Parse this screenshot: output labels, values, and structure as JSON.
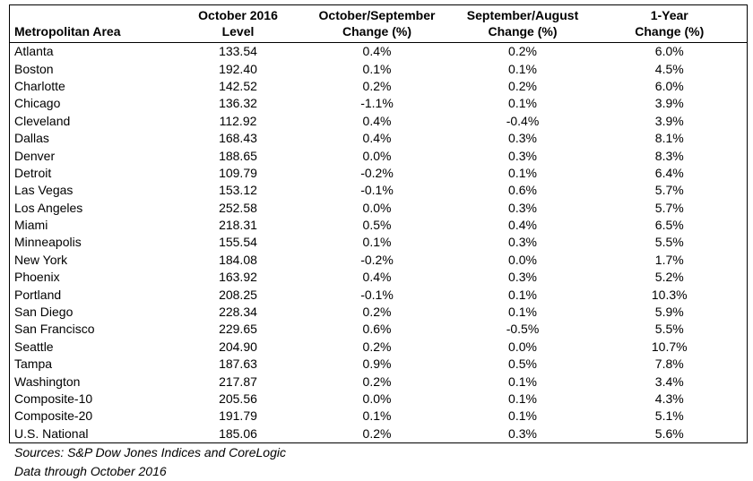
{
  "table": {
    "headers": [
      "Metropolitan Area",
      "October 2016\nLevel",
      "October/September\nChange (%)",
      "September/August\nChange (%)",
      "1-Year\nChange (%)"
    ],
    "rows": [
      [
        "Atlanta",
        "133.54",
        "0.4%",
        "0.2%",
        "6.0%"
      ],
      [
        "Boston",
        "192.40",
        "0.1%",
        "0.1%",
        "4.5%"
      ],
      [
        "Charlotte",
        "142.52",
        "0.2%",
        "0.2%",
        "6.0%"
      ],
      [
        "Chicago",
        "136.32",
        "-1.1%",
        "0.1%",
        "3.9%"
      ],
      [
        "Cleveland",
        "112.92",
        "0.4%",
        "-0.4%",
        "3.9%"
      ],
      [
        "Dallas",
        "168.43",
        "0.4%",
        "0.3%",
        "8.1%"
      ],
      [
        "Denver",
        "188.65",
        "0.0%",
        "0.3%",
        "8.3%"
      ],
      [
        "Detroit",
        "109.79",
        "-0.2%",
        "0.1%",
        "6.4%"
      ],
      [
        "Las Vegas",
        "153.12",
        "-0.1%",
        "0.6%",
        "5.7%"
      ],
      [
        "Los Angeles",
        "252.58",
        "0.0%",
        "0.3%",
        "5.7%"
      ],
      [
        "Miami",
        "218.31",
        "0.5%",
        "0.4%",
        "6.5%"
      ],
      [
        "Minneapolis",
        "155.54",
        "0.1%",
        "0.3%",
        "5.5%"
      ],
      [
        "New York",
        "184.08",
        "-0.2%",
        "0.0%",
        "1.7%"
      ],
      [
        "Phoenix",
        "163.92",
        "0.4%",
        "0.3%",
        "5.2%"
      ],
      [
        "Portland",
        "208.25",
        "-0.1%",
        "0.1%",
        "10.3%"
      ],
      [
        "San Diego",
        "228.34",
        "0.2%",
        "0.1%",
        "5.9%"
      ],
      [
        "San Francisco",
        "229.65",
        "0.6%",
        "-0.5%",
        "5.5%"
      ],
      [
        "Seattle",
        "204.90",
        "0.2%",
        "0.0%",
        "10.7%"
      ],
      [
        "Tampa",
        "187.63",
        "0.9%",
        "0.5%",
        "7.8%"
      ],
      [
        "Washington",
        "217.87",
        "0.2%",
        "0.1%",
        "3.4%"
      ],
      [
        "Composite-10",
        "205.56",
        "0.0%",
        "0.1%",
        "4.3%"
      ],
      [
        "Composite-20",
        "191.79",
        "0.1%",
        "0.1%",
        "5.1%"
      ],
      [
        "U.S. National",
        "185.06",
        "0.2%",
        "0.3%",
        "5.6%"
      ]
    ]
  },
  "footer": {
    "sources": "Sources: S&P Dow Jones Indices and CoreLogic",
    "data_through": "Data through October 2016"
  }
}
